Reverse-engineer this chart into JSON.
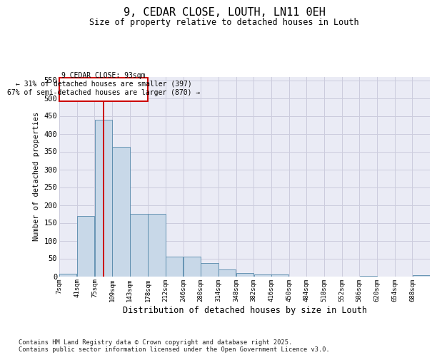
{
  "title": "9, CEDAR CLOSE, LOUTH, LN11 0EH",
  "subtitle": "Size of property relative to detached houses in Louth",
  "xlabel": "Distribution of detached houses by size in Louth",
  "ylabel": "Number of detached properties",
  "bar_color": "#c8d8e8",
  "bar_edge_color": "#5588aa",
  "grid_color": "#ccccdd",
  "background_color": "#eaebf5",
  "annotation_box_color": "#cc0000",
  "annotation_line_color": "#cc0000",
  "property_line_x": 93,
  "annotation_text_line1": "9 CEDAR CLOSE: 93sqm",
  "annotation_text_line2": "← 31% of detached houses are smaller (397)",
  "annotation_text_line3": "67% of semi-detached houses are larger (870) →",
  "categories": [
    "7sqm",
    "41sqm",
    "75sqm",
    "109sqm",
    "143sqm",
    "178sqm",
    "212sqm",
    "246sqm",
    "280sqm",
    "314sqm",
    "348sqm",
    "382sqm",
    "416sqm",
    "450sqm",
    "484sqm",
    "518sqm",
    "552sqm",
    "586sqm",
    "620sqm",
    "654sqm",
    "688sqm"
  ],
  "bin_edges": [
    7,
    41,
    75,
    109,
    143,
    178,
    212,
    246,
    280,
    314,
    348,
    382,
    416,
    450,
    484,
    518,
    552,
    586,
    620,
    654,
    688,
    722
  ],
  "values": [
    7,
    170,
    440,
    363,
    175,
    175,
    56,
    56,
    37,
    19,
    10,
    5,
    5,
    0,
    0,
    0,
    0,
    2,
    0,
    0,
    3
  ],
  "ylim": [
    0,
    560
  ],
  "yticks": [
    0,
    50,
    100,
    150,
    200,
    250,
    300,
    350,
    400,
    450,
    500,
    550
  ],
  "footer_line1": "Contains HM Land Registry data © Crown copyright and database right 2025.",
  "footer_line2": "Contains public sector information licensed under the Open Government Licence v3.0."
}
